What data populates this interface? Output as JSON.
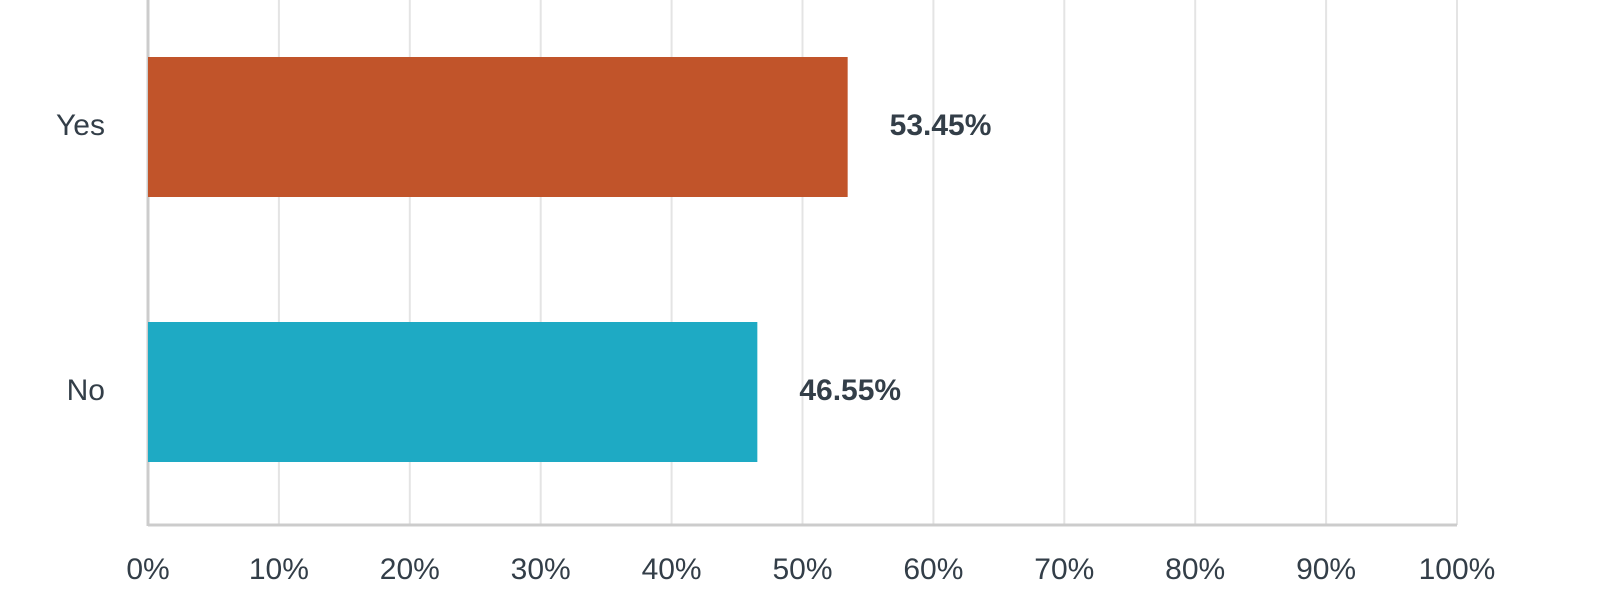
{
  "chart_data": {
    "type": "hbar",
    "categories": [
      "Yes",
      "No"
    ],
    "values": [
      53.45,
      46.55
    ],
    "value_labels": [
      "53.45%",
      "46.55%"
    ],
    "colors": [
      "#c1542a",
      "#1eaac4"
    ],
    "xlim": [
      0,
      100
    ],
    "xticks": [
      {
        "value": 0,
        "label": "0%"
      },
      {
        "value": 10,
        "label": "10%"
      },
      {
        "value": 20,
        "label": "20%"
      },
      {
        "value": 30,
        "label": "30%"
      },
      {
        "value": 40,
        "label": "40%"
      },
      {
        "value": 50,
        "label": "50%"
      },
      {
        "value": 60,
        "label": "60%"
      },
      {
        "value": 70,
        "label": "70%"
      },
      {
        "value": 80,
        "label": "80%"
      },
      {
        "value": 90,
        "label": "90%"
      },
      {
        "value": 100,
        "label": "100%"
      }
    ],
    "grid": true
  }
}
